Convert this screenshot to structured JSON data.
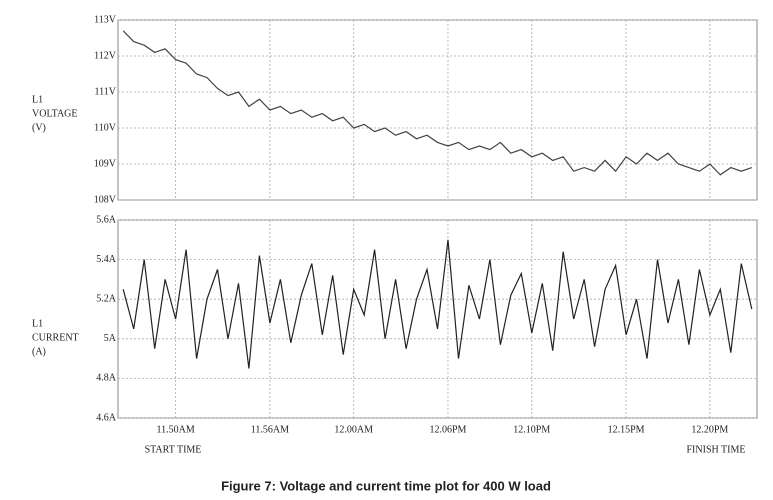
{
  "chart_data": [
    {
      "type": "line",
      "ylabel": [
        "L1",
        "VOLTAGE",
        "(V)"
      ],
      "values": [
        112.7,
        112.4,
        112.3,
        112.1,
        112.2,
        111.9,
        111.8,
        111.5,
        111.4,
        111.1,
        110.9,
        111.0,
        110.6,
        110.8,
        110.5,
        110.6,
        110.4,
        110.5,
        110.3,
        110.4,
        110.2,
        110.3,
        110.0,
        110.1,
        109.9,
        110.0,
        109.8,
        109.9,
        109.7,
        109.8,
        109.6,
        109.5,
        109.6,
        109.4,
        109.5,
        109.4,
        109.6,
        109.3,
        109.4,
        109.2,
        109.3,
        109.1,
        109.2,
        108.8,
        108.9,
        108.8,
        109.1,
        108.8,
        109.2,
        109.0,
        109.3,
        109.1,
        109.3,
        109.0,
        108.9,
        108.8,
        109.0,
        108.7,
        108.9,
        108.8,
        108.9
      ],
      "color": "#444444",
      "ylim": [
        108,
        113
      ],
      "yticks": [
        {
          "value": 108,
          "label": "108V"
        },
        {
          "value": 109,
          "label": "109V"
        },
        {
          "value": 110,
          "label": "110V"
        },
        {
          "value": 111,
          "label": "111V"
        },
        {
          "value": 112,
          "label": "112V"
        },
        {
          "value": 113,
          "label": "113V"
        }
      ],
      "grid": true
    },
    {
      "type": "line",
      "ylabel": [
        "L1",
        "CURRENT",
        "(A)"
      ],
      "categories": [
        null,
        null,
        null,
        null,
        null,
        "11.50AM",
        null,
        null,
        null,
        null,
        null,
        null,
        null,
        null,
        "11.56AM",
        null,
        null,
        null,
        null,
        null,
        null,
        null,
        "12.00AM",
        null,
        null,
        null,
        null,
        null,
        null,
        null,
        null,
        "12.06PM",
        null,
        null,
        null,
        null,
        null,
        null,
        null,
        "12.10PM",
        null,
        null,
        null,
        null,
        null,
        null,
        null,
        null,
        "12.15PM",
        null,
        null,
        null,
        null,
        null,
        null,
        null,
        "12.20PM",
        null,
        null,
        null,
        null
      ],
      "values": [
        5.25,
        5.05,
        5.4,
        4.95,
        5.3,
        5.1,
        5.45,
        4.9,
        5.2,
        5.35,
        5.0,
        5.28,
        4.85,
        5.42,
        5.08,
        5.3,
        4.98,
        5.22,
        5.38,
        5.02,
        5.32,
        4.92,
        5.25,
        5.12,
        5.45,
        5.0,
        5.3,
        4.95,
        5.2,
        5.35,
        5.05,
        5.5,
        4.9,
        5.27,
        5.1,
        5.4,
        4.97,
        5.22,
        5.33,
        5.03,
        5.28,
        4.94,
        5.44,
        5.1,
        5.3,
        4.96,
        5.25,
        5.37,
        5.02,
        5.2,
        4.9,
        5.4,
        5.08,
        5.3,
        4.97,
        5.35,
        5.12,
        5.25,
        4.93,
        5.38,
        5.15
      ],
      "color": "#222222",
      "ylim": [
        4.6,
        5.6
      ],
      "yticks": [
        {
          "value": 4.6,
          "label": "4.6A"
        },
        {
          "value": 4.8,
          "label": "4.8A"
        },
        {
          "value": 5,
          "label": "5A"
        },
        {
          "value": 5.2,
          "label": "5.2A"
        },
        {
          "value": 5.4,
          "label": "5.4A"
        },
        {
          "value": 5.6,
          "label": "5.6A"
        }
      ],
      "grid": true,
      "annotations": [
        "START TIME",
        "FINISH TIME"
      ]
    }
  ],
  "caption": "Figure 7: Voltage and current time plot for 400 W load"
}
